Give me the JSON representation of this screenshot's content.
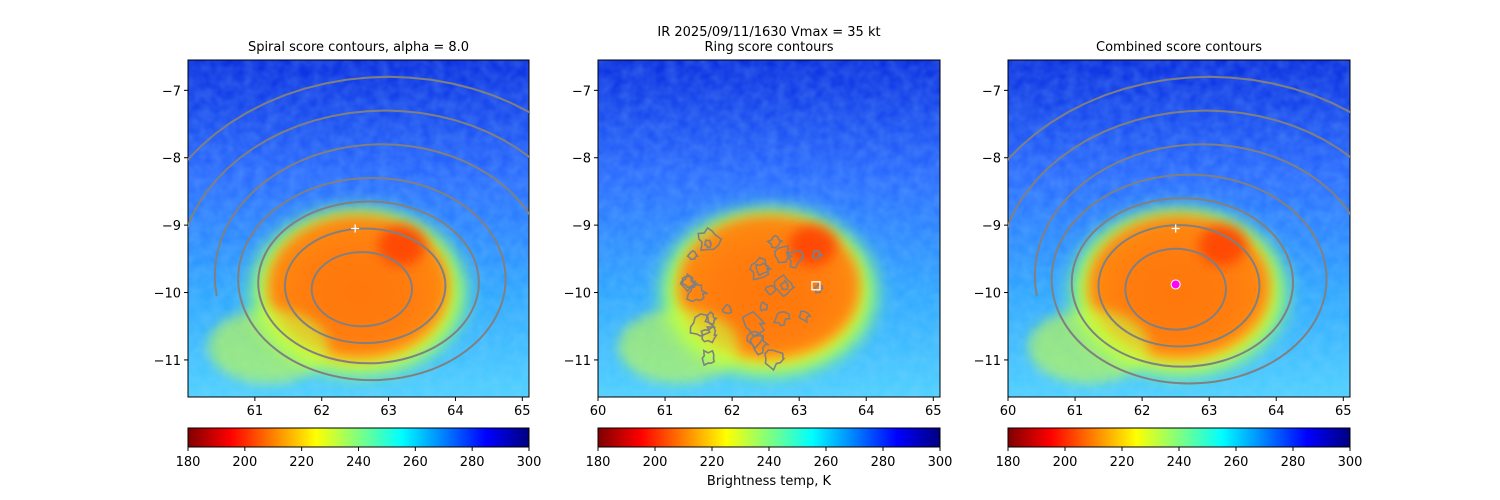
{
  "suptitle": "IR  2025/09/11/1630    Vmax = 35 kt",
  "colorbar_label": "Brightness temp, K",
  "colormap": [
    "#7f0000",
    "#ff0000",
    "#ff8000",
    "#ffff00",
    "#7fff7f",
    "#00ffff",
    "#0080ff",
    "#0000ff",
    "#00007f"
  ],
  "contour_color": "#808080",
  "chart_data": [
    {
      "type": "heatmap",
      "title": "Spiral score contours, alpha =  8.0",
      "xlim": [
        60.0,
        65.1
      ],
      "ylim": [
        -11.55,
        -6.55
      ],
      "xticks": [
        "61",
        "62",
        "63",
        "64",
        "65"
      ],
      "yticks": [
        "−7",
        "−8",
        "−9",
        "−10",
        "−11"
      ],
      "colorbar": {
        "range": [
          180,
          300
        ],
        "ticks": [
          "180",
          "200",
          "220",
          "240",
          "260",
          "280",
          "300"
        ]
      },
      "markers": [
        {
          "name": "plus",
          "x": 62.5,
          "y": -9.05,
          "color": "#ffffff"
        }
      ],
      "contour_rings": [
        {
          "cx": 62.6,
          "cy": -9.95,
          "rx": 0.75,
          "ry": 0.55
        },
        {
          "cx": 62.65,
          "cy": -9.9,
          "rx": 1.2,
          "ry": 0.85
        },
        {
          "cx": 62.7,
          "cy": -9.85,
          "rx": 1.65,
          "ry": 1.2
        },
        {
          "cx": 62.75,
          "cy": -9.8,
          "rx": 2.0,
          "ry": 1.5
        }
      ]
    },
    {
      "type": "heatmap",
      "title": "Ring score contours",
      "xlim": [
        60.0,
        65.1
      ],
      "ylim": [
        -11.55,
        -6.55
      ],
      "xticks": [
        "60",
        "61",
        "62",
        "63",
        "64",
        "65"
      ],
      "yticks": [
        "−7",
        "−8",
        "−9",
        "−10",
        "−11"
      ],
      "colorbar": {
        "range": [
          180,
          300
        ],
        "ticks": [
          "180",
          "200",
          "220",
          "240",
          "260",
          "280",
          "300"
        ]
      },
      "markers": [
        {
          "name": "square",
          "x": 63.25,
          "y": -9.9,
          "color": "#ffffff"
        }
      ]
    },
    {
      "type": "heatmap",
      "title": "Combined score contours",
      "xlim": [
        60.0,
        65.1
      ],
      "ylim": [
        -11.55,
        -6.55
      ],
      "xticks": [
        "60",
        "61",
        "62",
        "63",
        "64",
        "65"
      ],
      "yticks": [
        "−7",
        "−8",
        "−9",
        "−10",
        "−11"
      ],
      "colorbar": {
        "range": [
          180,
          300
        ],
        "ticks": [
          "180",
          "200",
          "220",
          "240",
          "260",
          "280",
          "300"
        ]
      },
      "markers": [
        {
          "name": "plus",
          "x": 62.5,
          "y": -9.05,
          "color": "#ffffff"
        },
        {
          "name": "circle",
          "x": 62.5,
          "y": -9.88,
          "color": "#ff00ff"
        }
      ],
      "contour_rings": [
        {
          "cx": 62.5,
          "cy": -9.95,
          "rx": 0.75,
          "ry": 0.6
        },
        {
          "cx": 62.55,
          "cy": -9.9,
          "rx": 1.2,
          "ry": 0.9
        },
        {
          "cx": 62.6,
          "cy": -9.85,
          "rx": 1.65,
          "ry": 1.25
        },
        {
          "cx": 62.7,
          "cy": -9.8,
          "rx": 2.05,
          "ry": 1.55
        }
      ]
    }
  ]
}
